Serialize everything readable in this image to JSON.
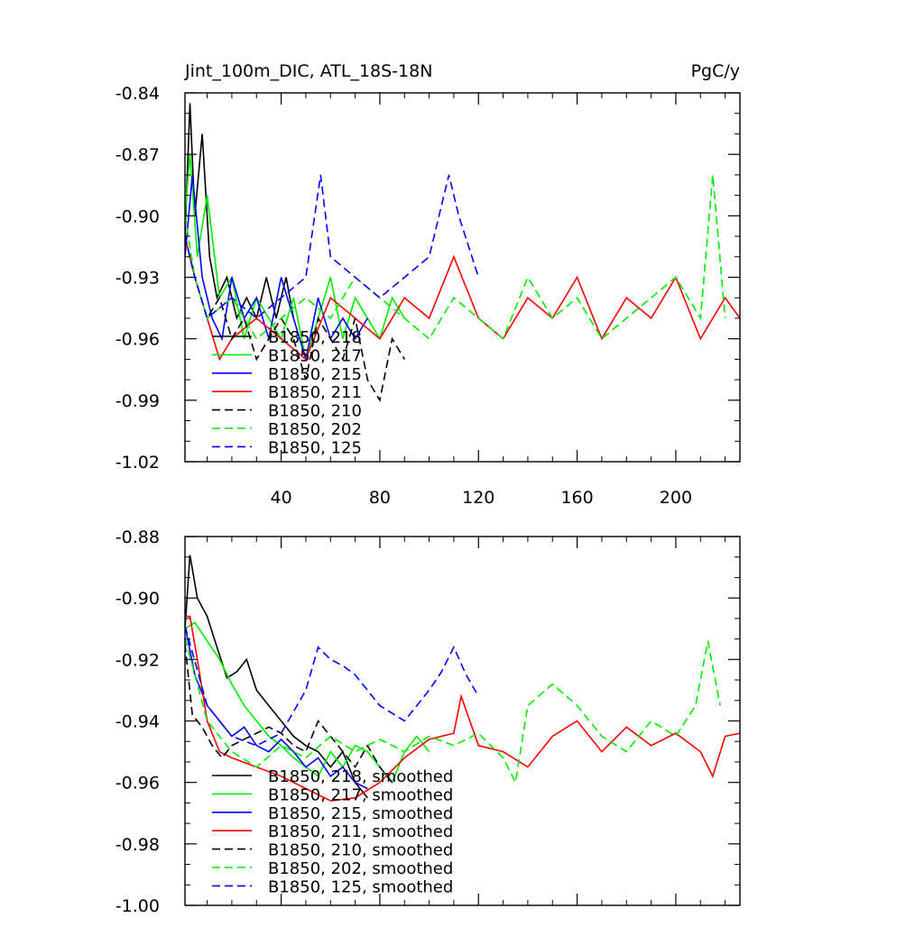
{
  "chart_data": [
    {
      "type": "line",
      "title": "Jint_100m_DIC, ATL_18S-18N",
      "units": "PgC/y",
      "xlim": [
        1,
        226
      ],
      "ylim": [
        -1.02,
        -0.84
      ],
      "xticks": [
        40,
        80,
        120,
        160,
        200
      ],
      "yticks": [
        -0.84,
        -0.87,
        -0.9,
        -0.93,
        -0.96,
        -0.99,
        -1.02
      ],
      "ytick_labels": [
        "-0.84",
        "-0.87",
        "-0.90",
        "-0.93",
        "-0.96",
        "-0.99",
        "-1.02"
      ],
      "grid": false,
      "legend_position": "bottom-left",
      "series": [
        {
          "name": "B1850, 218",
          "color": "#000000",
          "dash": "solid",
          "x": [
            1,
            3,
            5,
            8,
            11,
            14,
            18,
            22,
            26,
            30,
            34,
            38,
            42,
            45
          ],
          "y": [
            -0.91,
            -0.845,
            -0.9,
            -0.86,
            -0.92,
            -0.94,
            -0.93,
            -0.95,
            -0.94,
            -0.95,
            -0.93,
            -0.95,
            -0.93,
            -0.95
          ]
        },
        {
          "name": "B1850, 217",
          "color": "#00ee00",
          "dash": "solid",
          "x": [
            1,
            3,
            6,
            10,
            15,
            20,
            25,
            30,
            35,
            40,
            45,
            50,
            55,
            60,
            65,
            70,
            75,
            80,
            85,
            90
          ],
          "y": [
            -0.9,
            -0.87,
            -0.92,
            -0.89,
            -0.94,
            -0.93,
            -0.96,
            -0.94,
            -0.95,
            -0.96,
            -0.94,
            -0.97,
            -0.95,
            -0.93,
            -0.96,
            -0.94,
            -0.95,
            -0.96,
            -0.94,
            -0.95
          ]
        },
        {
          "name": "B1850, 215",
          "color": "#0000ff",
          "dash": "solid",
          "x": [
            1,
            4,
            8,
            12,
            16,
            20,
            25,
            30,
            35,
            40,
            45,
            50,
            55,
            60,
            65,
            70,
            75
          ],
          "y": [
            -0.92,
            -0.88,
            -0.93,
            -0.95,
            -0.96,
            -0.93,
            -0.95,
            -0.94,
            -0.96,
            -0.93,
            -0.95,
            -0.97,
            -0.94,
            -0.96,
            -0.95,
            -0.96,
            -0.95
          ]
        },
        {
          "name": "B1850, 211",
          "color": "#ff0000",
          "dash": "solid",
          "x": [
            1,
            5,
            10,
            15,
            20,
            30,
            40,
            50,
            60,
            70,
            80,
            90,
            100,
            110,
            120,
            130,
            140,
            150,
            160,
            170,
            180,
            190,
            200,
            210,
            220,
            226
          ],
          "y": [
            -0.91,
            -0.93,
            -0.95,
            -0.97,
            -0.96,
            -0.95,
            -0.96,
            -0.97,
            -0.94,
            -0.95,
            -0.96,
            -0.94,
            -0.95,
            -0.92,
            -0.95,
            -0.96,
            -0.94,
            -0.95,
            -0.93,
            -0.96,
            -0.94,
            -0.95,
            -0.93,
            -0.96,
            -0.94,
            -0.95
          ]
        },
        {
          "name": "B1850, 210",
          "color": "#000000",
          "dash": "dashed",
          "x": [
            1,
            5,
            10,
            15,
            20,
            25,
            30,
            35,
            40,
            45,
            50,
            55,
            60,
            65,
            70,
            75,
            80,
            85,
            90
          ],
          "y": [
            -0.91,
            -0.93,
            -0.95,
            -0.94,
            -0.96,
            -0.95,
            -0.97,
            -0.96,
            -0.95,
            -0.96,
            -0.98,
            -0.95,
            -0.96,
            -0.97,
            -0.95,
            -0.98,
            -0.99,
            -0.96,
            -0.97
          ]
        },
        {
          "name": "B1850, 202",
          "color": "#00ee00",
          "dash": "dashed",
          "x": [
            1,
            5,
            10,
            20,
            30,
            40,
            50,
            60,
            70,
            80,
            90,
            100,
            110,
            120,
            130,
            140,
            150,
            160,
            170,
            180,
            190,
            200,
            210,
            215,
            220
          ],
          "y": [
            -0.9,
            -0.93,
            -0.95,
            -0.94,
            -0.96,
            -0.95,
            -0.94,
            -0.95,
            -0.93,
            -0.94,
            -0.95,
            -0.96,
            -0.94,
            -0.95,
            -0.96,
            -0.93,
            -0.95,
            -0.94,
            -0.96,
            -0.95,
            -0.94,
            -0.93,
            -0.95,
            -0.88,
            -0.95
          ]
        },
        {
          "name": "B1850, 125",
          "color": "#0000ff",
          "dash": "dashed",
          "x": [
            1,
            5,
            10,
            20,
            30,
            40,
            50,
            56,
            60,
            70,
            80,
            90,
            100,
            108,
            112,
            120
          ],
          "y": [
            -0.91,
            -0.93,
            -0.95,
            -0.94,
            -0.95,
            -0.94,
            -0.93,
            -0.88,
            -0.92,
            -0.93,
            -0.94,
            -0.93,
            -0.92,
            -0.88,
            -0.9,
            -0.93
          ]
        }
      ]
    },
    {
      "type": "line",
      "xlim": [
        1,
        226
      ],
      "ylim": [
        -1.0,
        -0.88
      ],
      "xticks": [
        40,
        80,
        120,
        160,
        200
      ],
      "yticks": [
        -0.88,
        -0.9,
        -0.92,
        -0.94,
        -0.96,
        -0.98,
        -1.0
      ],
      "ytick_labels": [
        "-0.88",
        "-0.90",
        "-0.92",
        "-0.94",
        "-0.96",
        "-0.98",
        "-1.00"
      ],
      "grid": false,
      "legend_position": "bottom-left",
      "series": [
        {
          "name": "B1850, 218, smoothed",
          "color": "#000000",
          "dash": "solid",
          "x": [
            1,
            3,
            6,
            10,
            14,
            18,
            22,
            26,
            30,
            35,
            40,
            45,
            50,
            55,
            60,
            65,
            70,
            75
          ],
          "y": [
            -0.91,
            -0.886,
            -0.9,
            -0.906,
            -0.916,
            -0.926,
            -0.924,
            -0.92,
            -0.93,
            -0.935,
            -0.94,
            -0.945,
            -0.948,
            -0.95,
            -0.955,
            -0.95,
            -0.96,
            -0.965
          ]
        },
        {
          "name": "B1850, 217, smoothed",
          "color": "#00ee00",
          "dash": "solid",
          "x": [
            1,
            5,
            10,
            15,
            20,
            25,
            30,
            35,
            40,
            45,
            50,
            55,
            60,
            65,
            70,
            75,
            80,
            85,
            90,
            95,
            100
          ],
          "y": [
            -0.91,
            -0.908,
            -0.914,
            -0.92,
            -0.928,
            -0.935,
            -0.94,
            -0.945,
            -0.948,
            -0.952,
            -0.955,
            -0.958,
            -0.95,
            -0.955,
            -0.948,
            -0.95,
            -0.955,
            -0.96,
            -0.95,
            -0.945,
            -0.95
          ]
        },
        {
          "name": "B1850, 215, smoothed",
          "color": "#0000ff",
          "dash": "solid",
          "x": [
            1,
            5,
            10,
            15,
            20,
            25,
            30,
            35,
            40,
            45,
            50,
            55,
            60,
            65,
            70,
            75
          ],
          "y": [
            -0.909,
            -0.925,
            -0.935,
            -0.94,
            -0.945,
            -0.942,
            -0.948,
            -0.95,
            -0.946,
            -0.95,
            -0.955,
            -0.952,
            -0.958,
            -0.955,
            -0.96,
            -0.962
          ]
        },
        {
          "name": "B1850, 211, smoothed",
          "color": "#ff0000",
          "dash": "solid",
          "x": [
            1,
            3,
            6,
            10,
            15,
            20,
            30,
            40,
            50,
            60,
            70,
            80,
            90,
            100,
            110,
            113,
            120,
            130,
            140,
            150,
            160,
            170,
            180,
            190,
            200,
            210,
            215,
            220,
            226
          ],
          "y": [
            -0.906,
            -0.906,
            -0.92,
            -0.94,
            -0.95,
            -0.952,
            -0.955,
            -0.958,
            -0.962,
            -0.966,
            -0.965,
            -0.96,
            -0.952,
            -0.946,
            -0.944,
            -0.932,
            -0.948,
            -0.95,
            -0.955,
            -0.945,
            -0.94,
            -0.95,
            -0.942,
            -0.948,
            -0.944,
            -0.95,
            -0.958,
            -0.945,
            -0.944
          ]
        },
        {
          "name": "B1850, 210, smoothed",
          "color": "#000000",
          "dash": "dashed",
          "x": [
            1,
            4,
            8,
            12,
            16,
            20,
            25,
            30,
            35,
            40,
            45,
            50,
            55,
            60,
            65,
            70,
            75,
            80,
            85
          ],
          "y": [
            -0.915,
            -0.938,
            -0.942,
            -0.948,
            -0.952,
            -0.948,
            -0.946,
            -0.944,
            -0.942,
            -0.944,
            -0.948,
            -0.95,
            -0.94,
            -0.945,
            -0.95,
            -0.955,
            -0.948,
            -0.955,
            -0.96
          ]
        },
        {
          "name": "B1850, 202, smoothed",
          "color": "#00ee00",
          "dash": "dashed",
          "x": [
            1,
            10,
            20,
            30,
            40,
            50,
            60,
            70,
            80,
            90,
            100,
            110,
            120,
            130,
            135,
            140,
            150,
            160,
            170,
            180,
            190,
            200,
            208,
            213,
            218
          ],
          "y": [
            -0.913,
            -0.94,
            -0.95,
            -0.955,
            -0.948,
            -0.952,
            -0.945,
            -0.95,
            -0.946,
            -0.95,
            -0.945,
            -0.948,
            -0.944,
            -0.952,
            -0.96,
            -0.935,
            -0.928,
            -0.935,
            -0.945,
            -0.95,
            -0.94,
            -0.945,
            -0.935,
            -0.914,
            -0.935
          ]
        },
        {
          "name": "B1850, 125, smoothed",
          "color": "#0000ff",
          "dash": "dashed",
          "x": [
            1,
            10,
            20,
            30,
            40,
            50,
            55,
            60,
            65,
            70,
            80,
            90,
            100,
            105,
            110,
            115,
            120
          ],
          "y": [
            -0.909,
            -0.935,
            -0.945,
            -0.948,
            -0.944,
            -0.93,
            -0.916,
            -0.92,
            -0.922,
            -0.925,
            -0.935,
            -0.94,
            -0.93,
            -0.924,
            -0.916,
            -0.925,
            -0.932
          ]
        }
      ]
    }
  ]
}
